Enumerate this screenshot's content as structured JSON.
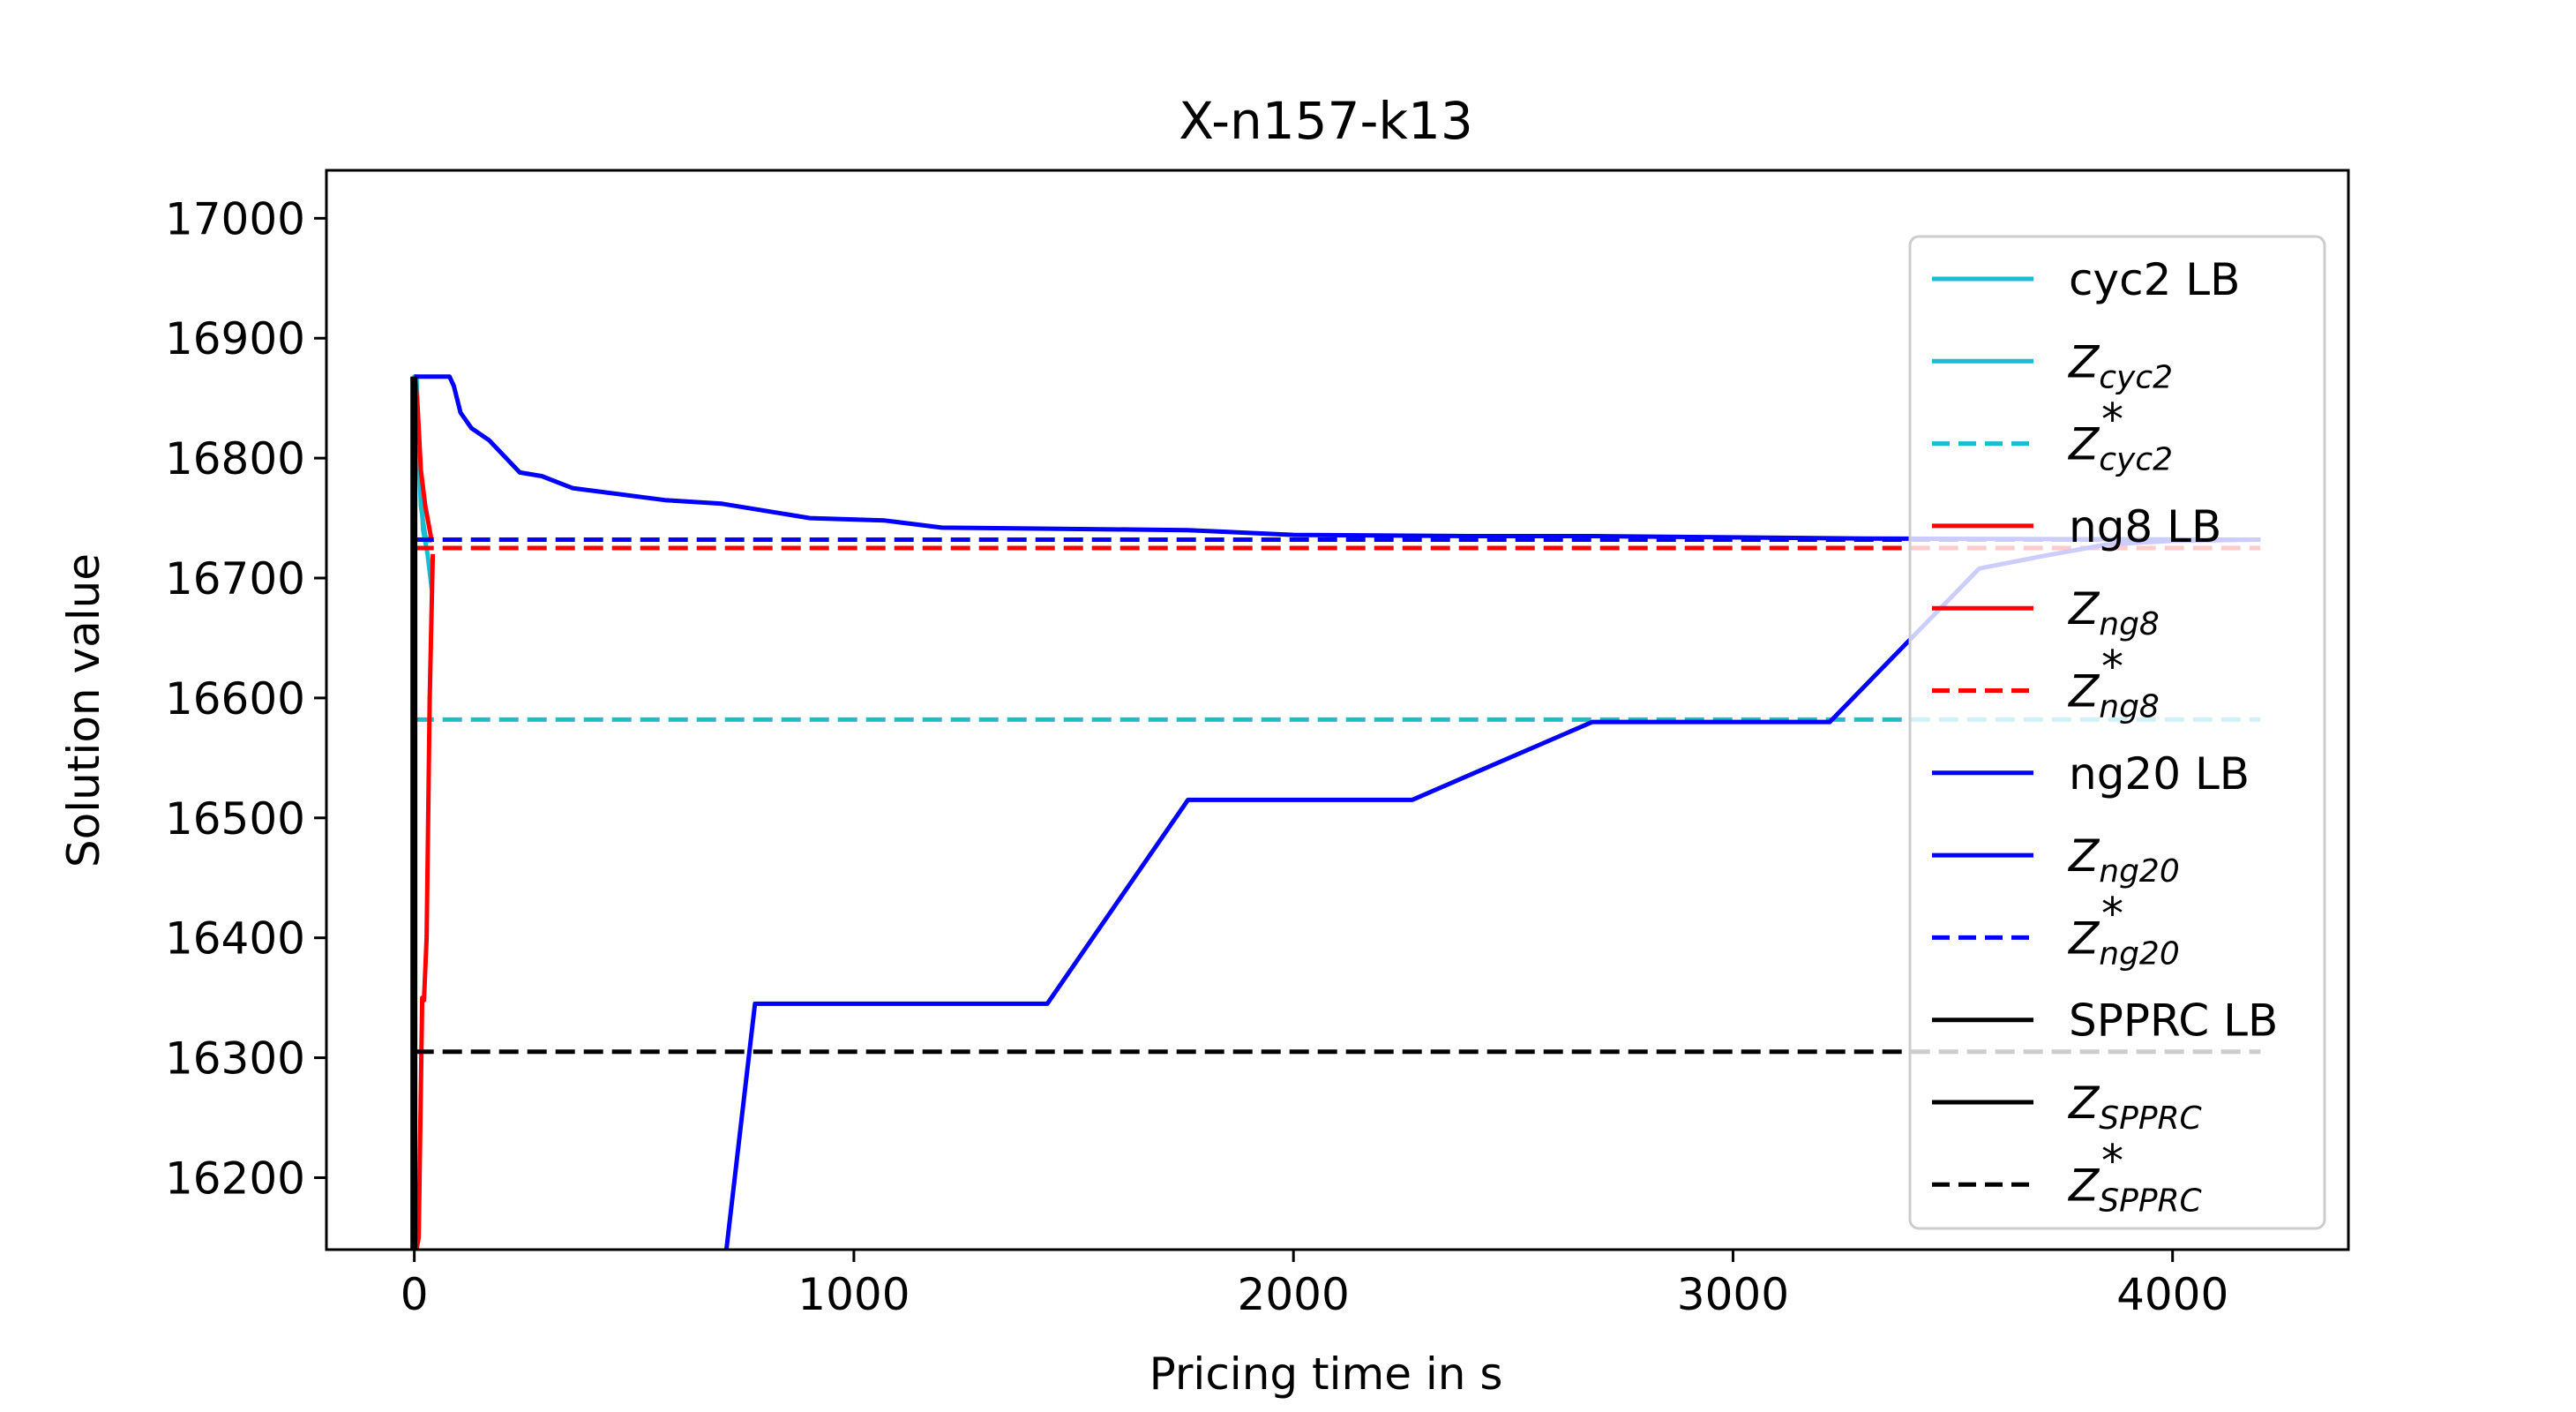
{
  "chart_data": {
    "type": "line",
    "title": "X-n157-k13",
    "xlabel": "Pricing time in s",
    "ylabel": "Solution value",
    "xlim": [
      -200,
      4400
    ],
    "ylim": [
      16140,
      17040
    ],
    "xticks": [
      0,
      1000,
      2000,
      3000,
      4000
    ],
    "xtick_labels": [
      "0",
      "1000",
      "2000",
      "3000",
      "4000"
    ],
    "yticks": [
      16200,
      16300,
      16400,
      16500,
      16600,
      16700,
      16800,
      16900,
      17000
    ],
    "ytick_labels": [
      "16200",
      "16300",
      "16400",
      "16500",
      "16600",
      "16700",
      "16800",
      "16900",
      "17000"
    ],
    "grid": false,
    "legend_position": "right",
    "series": [
      {
        "key": "cyc2-lb",
        "color": "#17becf",
        "dash": "solid",
        "x": [
          0,
          0,
          5,
          12,
          20,
          30,
          40
        ],
        "y": [
          16140,
          16868,
          16868,
          16800,
          16740,
          16720,
          16690
        ]
      },
      {
        "key": "z-cyc2",
        "color": "#17becf",
        "dash": "solid",
        "x": [
          0,
          0,
          8,
          15,
          25,
          35
        ],
        "y": [
          16868,
          16868,
          16820,
          16760,
          16735,
          16730
        ]
      },
      {
        "key": "z-cyc2-star",
        "color": "#17becf",
        "dash": "dashed",
        "x": [
          0,
          4200
        ],
        "y": [
          16582,
          16582
        ]
      },
      {
        "key": "ng8-lb",
        "color": "#ff0000",
        "dash": "solid",
        "x": [
          5,
          10,
          18,
          22,
          28,
          35,
          42
        ],
        "y": [
          16140,
          16150,
          16350,
          16348,
          16400,
          16600,
          16720
        ]
      },
      {
        "key": "z-ng8",
        "color": "#ff0000",
        "dash": "solid",
        "x": [
          0,
          2,
          8,
          15,
          25,
          40
        ],
        "y": [
          16868,
          16868,
          16840,
          16790,
          16760,
          16730
        ]
      },
      {
        "key": "z-ng8-star",
        "color": "#ff0000",
        "dash": "dashed",
        "x": [
          0,
          4200
        ],
        "y": [
          16725,
          16725
        ]
      },
      {
        "key": "ng20-lb",
        "color": "#0000ff",
        "dash": "solid",
        "x": [
          710,
          775,
          1440,
          1760,
          2270,
          2680,
          3220,
          3560,
          3700,
          3850,
          4000,
          4200
        ],
        "y": [
          16140,
          16345,
          16345,
          16515,
          16515,
          16580,
          16580,
          16708,
          16718,
          16728,
          16731,
          16732
        ]
      },
      {
        "key": "z-ng20",
        "color": "#0000ff",
        "dash": "solid",
        "x": [
          0,
          80,
          90,
          105,
          130,
          170,
          240,
          290,
          360,
          570,
          700,
          900,
          1070,
          1200,
          1760,
          2000,
          2400,
          2680,
          3300,
          4200
        ],
        "y": [
          16868,
          16868,
          16860,
          16838,
          16825,
          16815,
          16788,
          16785,
          16775,
          16765,
          16762,
          16750,
          16748,
          16742,
          16740,
          16736,
          16735,
          16735,
          16733,
          16732
        ]
      },
      {
        "key": "z-ng20-star",
        "color": "#0000ff",
        "dash": "dashed",
        "x": [
          0,
          4200
        ],
        "y": [
          16732,
          16732
        ]
      },
      {
        "key": "spprc-lb",
        "color": "#000000",
        "dash": "solid",
        "x": [
          -4,
          -4
        ],
        "y": [
          16140,
          16868
        ]
      },
      {
        "key": "z-spprc",
        "color": "#000000",
        "dash": "solid",
        "x": [
          2,
          2
        ],
        "y": [
          16140,
          16868
        ]
      },
      {
        "key": "z-spprc-star",
        "color": "#000000",
        "dash": "dashed",
        "x": [
          0,
          4200
        ],
        "y": [
          16305,
          16305
        ]
      }
    ],
    "legend": [
      {
        "series": "cyc2-lb",
        "color": "#17becf",
        "dash": "solid",
        "label": "cyc2 LB"
      },
      {
        "series": "z-cyc2",
        "color": "#17becf",
        "dash": "solid",
        "label": "Z",
        "sub": "cyc2",
        "sup": ""
      },
      {
        "series": "z-cyc2-star",
        "color": "#17becf",
        "dash": "dashed",
        "label": "Z",
        "sub": "cyc2",
        "sup": "*"
      },
      {
        "series": "ng8-lb",
        "color": "#ff0000",
        "dash": "solid",
        "label": "ng8 LB"
      },
      {
        "series": "z-ng8",
        "color": "#ff0000",
        "dash": "solid",
        "label": "Z",
        "sub": "ng8",
        "sup": ""
      },
      {
        "series": "z-ng8-star",
        "color": "#ff0000",
        "dash": "dashed",
        "label": "Z",
        "sub": "ng8",
        "sup": "*"
      },
      {
        "series": "ng20-lb",
        "color": "#0000ff",
        "dash": "solid",
        "label": "ng20 LB"
      },
      {
        "series": "z-ng20",
        "color": "#0000ff",
        "dash": "solid",
        "label": "Z",
        "sub": "ng20",
        "sup": ""
      },
      {
        "series": "z-ng20-star",
        "color": "#0000ff",
        "dash": "dashed",
        "label": "Z",
        "sub": "ng20",
        "sup": "*"
      },
      {
        "series": "spprc-lb",
        "color": "#000000",
        "dash": "solid",
        "label": "SPPRC LB"
      },
      {
        "series": "z-spprc",
        "color": "#000000",
        "dash": "solid",
        "label": "Z",
        "sub": "SPPRC",
        "sup": ""
      },
      {
        "series": "z-spprc-star",
        "color": "#000000",
        "dash": "dashed",
        "label": "Z",
        "sub": "SPPRC",
        "sup": "*"
      }
    ]
  }
}
